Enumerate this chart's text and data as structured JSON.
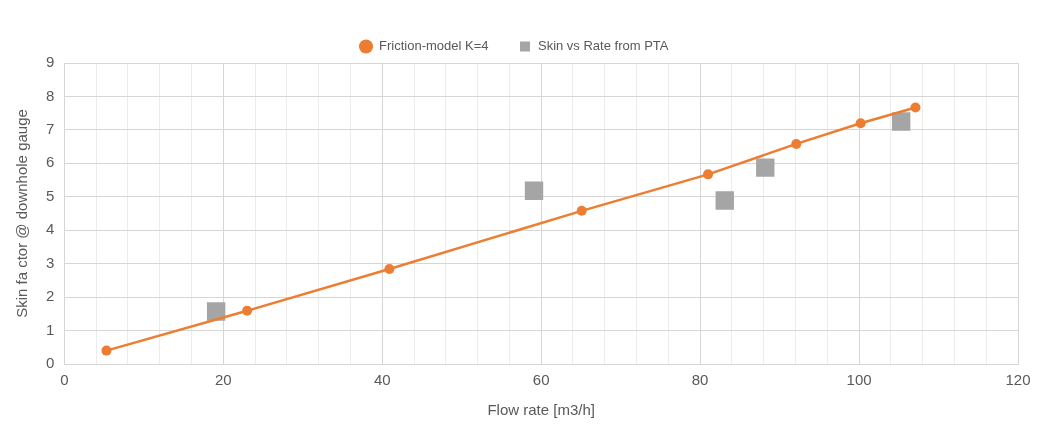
{
  "chart_data": {
    "type": "line",
    "xlabel": "Flow rate [m3/h]",
    "ylabel": "Skin fa ctor @ downhole gauge",
    "xlim": [
      0,
      120
    ],
    "xticks": [
      0,
      {
        "value": 4,
        "label": null
      },
      {
        "value": 8,
        "label": null
      },
      {
        "value": 12,
        "label": null
      },
      {
        "value": 16,
        "label": null
      },
      20,
      {
        "value": 24,
        "label": null
      },
      {
        "value": 28,
        "label": null
      },
      {
        "value": 32,
        "label": null
      },
      {
        "value": 36,
        "label": null
      },
      40,
      {
        "value": 44,
        "label": null
      },
      {
        "value": 48,
        "label": null
      },
      {
        "value": 52,
        "label": null
      },
      {
        "value": 56,
        "label": null
      },
      60,
      {
        "value": 64,
        "label": null
      },
      {
        "value": 68,
        "label": null
      },
      {
        "value": 72,
        "label": null
      },
      {
        "value": 76,
        "label": null
      },
      80,
      {
        "value": 84,
        "label": null
      },
      {
        "value": 88,
        "label": null
      },
      {
        "value": 92,
        "label": null
      },
      {
        "value": 96,
        "label": null
      },
      100,
      {
        "value": 104,
        "label": null
      },
      {
        "value": 108,
        "label": null
      },
      {
        "value": 112,
        "label": null
      },
      {
        "value": 116,
        "label": null
      },
      120
    ],
    "ylim": [
      0,
      9
    ],
    "yticks": [
      0,
      1,
      2,
      3,
      4,
      5,
      6,
      7,
      8,
      9
    ],
    "grid": true,
    "legend": "top",
    "series": [
      {
        "name": "Friction-model K=4",
        "type": "line",
        "color": "#ed7d31",
        "marker": "circle",
        "line_style": "solid",
        "x": [
          5.3,
          23,
          40.9,
          65.1,
          81,
          92.1,
          100.2,
          107.1
        ],
        "values": [
          0.4,
          1.59,
          2.84,
          4.58,
          5.67,
          6.58,
          7.2,
          7.67
        ]
      },
      {
        "name": "Skin vs Rate from PTA",
        "type": "scatter",
        "color": "#a5a5a5",
        "marker": "square",
        "x": [
          19.1,
          59.1,
          83.1,
          88.2,
          105.3
        ],
        "values": [
          1.57,
          5.18,
          4.89,
          5.87,
          7.25
        ]
      }
    ]
  }
}
